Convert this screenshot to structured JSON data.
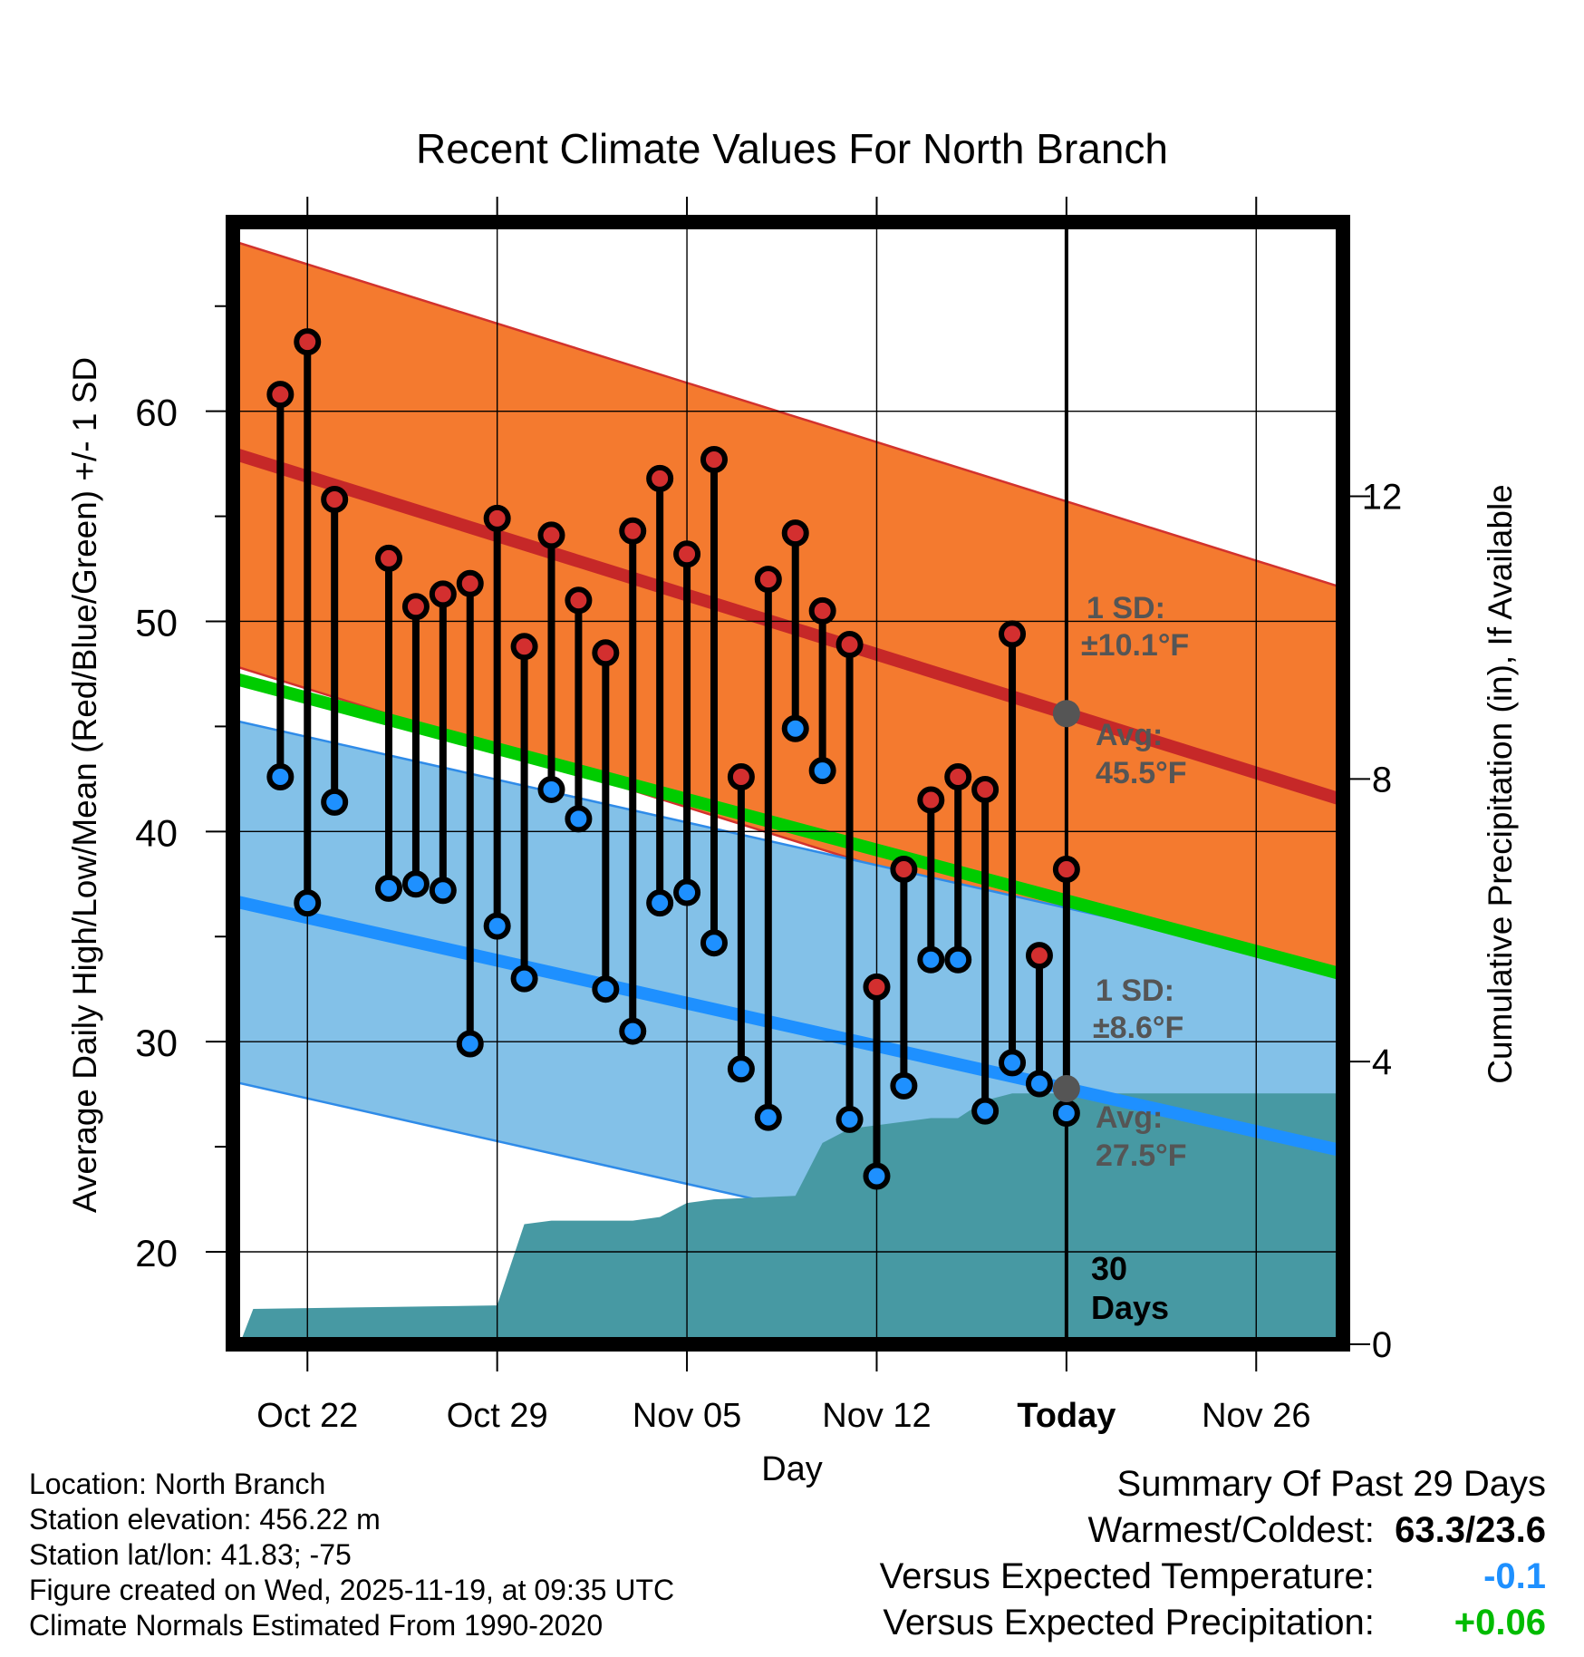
{
  "chart_data": {
    "type": "line",
    "title": "Recent Climate Values For North Branch",
    "xlabel": "Day",
    "ylabel": "Average Daily High/Low/Mean (Red/Blue/Green) +/- 1 SD",
    "y2label": "Cumulative Precipitation (in), If Available",
    "ylim": [
      15.6,
      69.0
    ],
    "y2lim": [
      0,
      15.88
    ],
    "x_range_days": [
      -30.75,
      10.2
    ],
    "x_ticks": [
      {
        "day": -28,
        "label": "Oct 22"
      },
      {
        "day": -21,
        "label": "Oct 29"
      },
      {
        "day": -14,
        "label": "Nov 05"
      },
      {
        "day": -7,
        "label": "Nov 12"
      },
      {
        "day": 0,
        "label": "Today"
      },
      {
        "day": 7,
        "label": "Nov 26"
      }
    ],
    "y_ticks": [
      20,
      30,
      40,
      50,
      60
    ],
    "y2_ticks": [
      0,
      4,
      8,
      12
    ],
    "normal_high": {
      "start": 58.0,
      "end": 41.5,
      "sd": 10.1
    },
    "normal_low": {
      "start": 36.7,
      "end": 24.8,
      "sd": 8.6
    },
    "normal_mean": {
      "start": 47.3,
      "end": 33.2
    },
    "observed": [
      {
        "day": -29,
        "high": 60.8,
        "low": 42.6
      },
      {
        "day": -28,
        "high": 63.3,
        "low": 36.6
      },
      {
        "day": -27,
        "high": 55.8,
        "low": 41.4
      },
      {
        "day": -25,
        "high": 53.0,
        "low": 37.3
      },
      {
        "day": -24,
        "high": 50.7,
        "low": 37.5
      },
      {
        "day": -23,
        "high": 51.3,
        "low": 37.2
      },
      {
        "day": -22,
        "high": 51.8,
        "low": 29.9
      },
      {
        "day": -21,
        "high": 54.9,
        "low": 35.5
      },
      {
        "day": -20,
        "high": 48.8,
        "low": 33.0
      },
      {
        "day": -19,
        "high": 54.1,
        "low": 42.0
      },
      {
        "day": -18,
        "high": 51.0,
        "low": 40.6
      },
      {
        "day": -17,
        "high": 48.5,
        "low": 32.5
      },
      {
        "day": -16,
        "high": 54.3,
        "low": 30.5
      },
      {
        "day": -15,
        "high": 56.8,
        "low": 36.6
      },
      {
        "day": -14,
        "high": 53.2,
        "low": 37.1
      },
      {
        "day": -13,
        "high": 57.7,
        "low": 34.7
      },
      {
        "day": -12,
        "high": 42.6,
        "low": 28.7
      },
      {
        "day": -11,
        "high": 52.0,
        "low": 26.4
      },
      {
        "day": -10,
        "high": 54.2,
        "low": 44.9
      },
      {
        "day": -9,
        "high": 50.5,
        "low": 42.9
      },
      {
        "day": -8,
        "high": 48.9,
        "low": 26.3
      },
      {
        "day": -7,
        "high": 32.6,
        "low": 23.6
      },
      {
        "day": -6,
        "high": 38.2,
        "low": 27.9
      },
      {
        "day": -5,
        "high": 41.5,
        "low": 33.9
      },
      {
        "day": -4,
        "high": 42.6,
        "low": 33.9
      },
      {
        "day": -3,
        "high": 42.0,
        "low": 26.7
      },
      {
        "day": -2,
        "high": 49.4,
        "low": 29.0
      },
      {
        "day": -1,
        "high": 34.1,
        "low": 28.0
      },
      {
        "day": 0,
        "high": 38.2,
        "low": 26.6
      }
    ],
    "precip_cumulative": [
      {
        "day": -30.5,
        "in": 0.0
      },
      {
        "day": -30.0,
        "in": 0.5
      },
      {
        "day": -21.0,
        "in": 0.55
      },
      {
        "day": -20.0,
        "in": 1.7
      },
      {
        "day": -19.0,
        "in": 1.75
      },
      {
        "day": -16.0,
        "in": 1.75
      },
      {
        "day": -15.0,
        "in": 1.8
      },
      {
        "day": -14.0,
        "in": 2.0
      },
      {
        "day": -13.0,
        "in": 2.05
      },
      {
        "day": -10.0,
        "in": 2.1
      },
      {
        "day": -9.0,
        "in": 2.85
      },
      {
        "day": -8.0,
        "in": 3.05
      },
      {
        "day": -7.0,
        "in": 3.1
      },
      {
        "day": -5.0,
        "in": 3.2
      },
      {
        "day": -4.0,
        "in": 3.2
      },
      {
        "day": -3.0,
        "in": 3.45
      },
      {
        "day": -2.0,
        "in": 3.55
      },
      {
        "day": 10.2,
        "in": 3.55
      }
    ],
    "annotations": {
      "high_sd": [
        "1 SD:",
        "±10.1°F"
      ],
      "high_avg": [
        "Avg:",
        "45.5°F"
      ],
      "low_sd": [
        "1 SD:",
        "±8.6°F"
      ],
      "low_avg": [
        "Avg:",
        "27.5°F"
      ],
      "days": [
        "30",
        "Days"
      ]
    }
  },
  "info": {
    "location": "Location: North Branch",
    "elevation": "Station elevation: 456.22 m",
    "latlon": "Station lat/lon: 41.83; -75",
    "created": "Figure created on Wed, 2025-11-19, at 09:35 UTC",
    "normals": "Climate Normals Estimated From 1990-2020"
  },
  "summary": {
    "title": "Summary Of Past 29 Days",
    "warm_cold_label": "Warmest/Coldest:",
    "warm_cold_value": "63.3/23.6",
    "temp_label": "Versus Expected Temperature:",
    "temp_value": "-0.1",
    "precip_label": "Versus Expected Precipitation:",
    "precip_value": "+0.06"
  },
  "colors": {
    "high_band": "#f47a2f",
    "high_line": "#c62828",
    "low_band": "#83c1e8",
    "low_line": "#1e90ff",
    "mean_line": "#00cc00",
    "precip": "#4799a3",
    "high_marker": "#d32f2f",
    "low_marker": "#1e90ff",
    "today_marker": "#555555",
    "annotation_text": "#555555",
    "temp_delta": "#1e90ff",
    "precip_delta": "#00bb00"
  }
}
